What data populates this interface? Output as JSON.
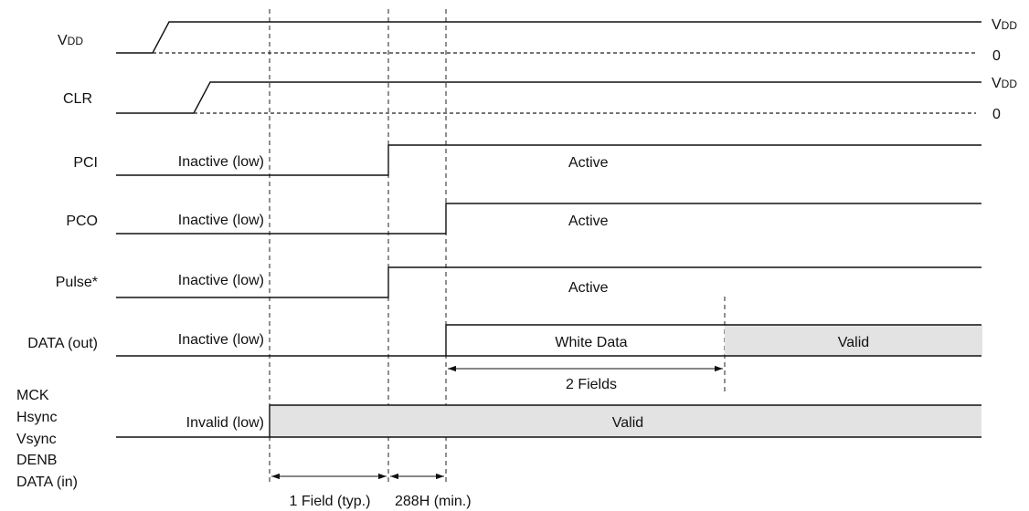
{
  "signals": {
    "vdd": {
      "name_main": "V",
      "name_sub": "DD",
      "high_main": "V",
      "high_sub": "DD",
      "low": "0"
    },
    "clr": {
      "name": "CLR",
      "high_main": "V",
      "high_sub": "DD",
      "low": "0"
    },
    "pci": {
      "name": "PCI",
      "inactive": "Inactive (low)",
      "active": "Active"
    },
    "pco": {
      "name": "PCO",
      "inactive": "Inactive (low)",
      "active": "Active"
    },
    "pulse": {
      "name": "Pulse*",
      "inactive": "Inactive (low)",
      "active": "Active"
    },
    "data_out": {
      "name": "DATA (out)",
      "inactive": "Inactive (low)",
      "white": "White Data",
      "valid": "Valid"
    },
    "inputs": {
      "names": [
        "MCK",
        "Hsync",
        "Vsync",
        "DENB",
        "DATA (in)"
      ],
      "invalid": "Invalid (low)",
      "valid": "Valid"
    }
  },
  "timings": {
    "two_fields": "2 Fields",
    "one_field": "1 Field (typ.)",
    "h288": "288H (min.)"
  }
}
